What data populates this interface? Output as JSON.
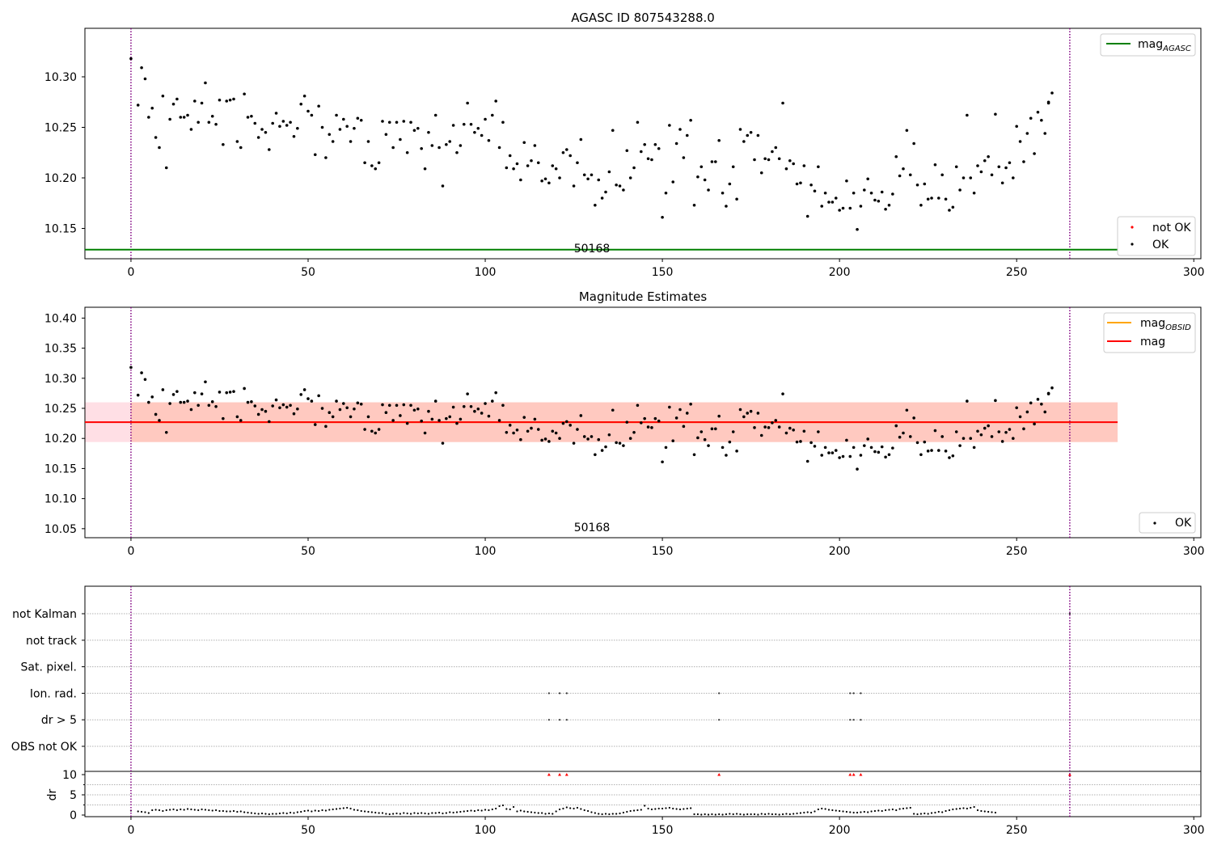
{
  "chart_data": [
    {
      "type": "scatter",
      "title": "AGASC ID 807543288.0",
      "ylim": [
        10.12,
        10.348
      ],
      "xlim": [
        -13,
        302
      ],
      "xticks": [
        0,
        50,
        100,
        150,
        200,
        250,
        300
      ],
      "yticks": [
        10.15,
        10.2,
        10.25,
        10.3
      ],
      "ytick_labels": [
        "10.15",
        "10.20",
        "10.25",
        "10.30"
      ],
      "grid": false,
      "series": [
        {
          "name": "OK",
          "color": "#000000"
        },
        {
          "name": "not OK",
          "color": "#ff0000",
          "values": []
        }
      ],
      "lines": [
        {
          "name": "mag_AGASC",
          "label_main": "mag",
          "label_sub": "AGASC",
          "y": 10.129,
          "x_range": [
            -13,
            278.5
          ],
          "color": "#008000"
        }
      ],
      "vlines": [
        0,
        265
      ],
      "vline_color": "#800080",
      "annotation": {
        "text": "50168",
        "x": 132,
        "y": 10.122
      },
      "legends": [
        {
          "placement": "top-right",
          "entries": [
            "mag_AGASC"
          ]
        },
        {
          "placement": "bottom-right",
          "entries": [
            "not OK",
            "OK"
          ]
        }
      ]
    },
    {
      "type": "scatter",
      "title": "Magnitude Estimates",
      "ylim": [
        10.035,
        10.418
      ],
      "xlim": [
        -13,
        302
      ],
      "xticks": [
        0,
        50,
        100,
        150,
        200,
        250,
        300
      ],
      "yticks": [
        10.05,
        10.1,
        10.15,
        10.2,
        10.25,
        10.3,
        10.35,
        10.4
      ],
      "ytick_labels": [
        "10.05",
        "10.10",
        "10.15",
        "10.20",
        "10.25",
        "10.30",
        "10.35",
        "10.40"
      ],
      "grid": false,
      "series": [
        {
          "name": "OK",
          "color": "#000000"
        }
      ],
      "lines": [
        {
          "name": "mag_OBSID",
          "label_main": "mag",
          "label_sub": "OBSID",
          "y": 10.227,
          "x_range": [
            0,
            265
          ],
          "color": "#ffa500"
        },
        {
          "name": "mag",
          "label_main": "mag",
          "label_sub": "",
          "y": 10.227,
          "x_range": [
            -13,
            278.5
          ],
          "color": "#ff0000"
        }
      ],
      "bands": [
        {
          "y": [
            10.194,
            10.26
          ],
          "x_range": [
            -13,
            278.5
          ],
          "color": "#ffc0cb",
          "opacity": 0.5
        },
        {
          "y": [
            10.194,
            10.26
          ],
          "x_range": [
            0,
            278.5
          ],
          "color": "#ffa07a",
          "opacity": 0.35
        }
      ],
      "vlines": [
        0,
        265
      ],
      "vline_color": "#800080",
      "annotation": {
        "text": "50168",
        "x": 132,
        "y": 10.047
      },
      "legends": [
        {
          "placement": "top-right",
          "entries": [
            "mag_OBSID",
            "mag"
          ]
        },
        {
          "placement": "bottom-right",
          "entries": [
            "OK"
          ]
        }
      ]
    },
    {
      "type": "scatter",
      "title": "",
      "xlim": [
        -13,
        302
      ],
      "xticks": [
        0,
        50,
        100,
        150,
        200,
        250,
        300
      ],
      "flag_labels": [
        "OBS not OK",
        "dr > 5",
        "Ion. rad.",
        "Sat. pixel.",
        "not track",
        "not Kalman"
      ],
      "flag_points": {
        "OBS not OK": [],
        "dr > 5": [
          118,
          121,
          123,
          166,
          203,
          204,
          206
        ],
        "Ion. rad.": [
          118,
          121,
          123,
          166,
          203,
          204,
          206
        ],
        "Sat. pixel.": [],
        "not track": [],
        "not Kalman": [
          265
        ]
      },
      "dr_ylabel": "dr",
      "dr_ylim": [
        -0.2,
        10.2
      ],
      "dr_yticks": [
        0,
        5,
        10
      ],
      "dr_ytick_labels": [
        "0",
        "5",
        "10"
      ],
      "dr_clipped_red": [
        118,
        121,
        123,
        166,
        203,
        204,
        206,
        265
      ],
      "vlines": [
        0,
        265
      ],
      "vline_color": "#800080"
    }
  ]
}
